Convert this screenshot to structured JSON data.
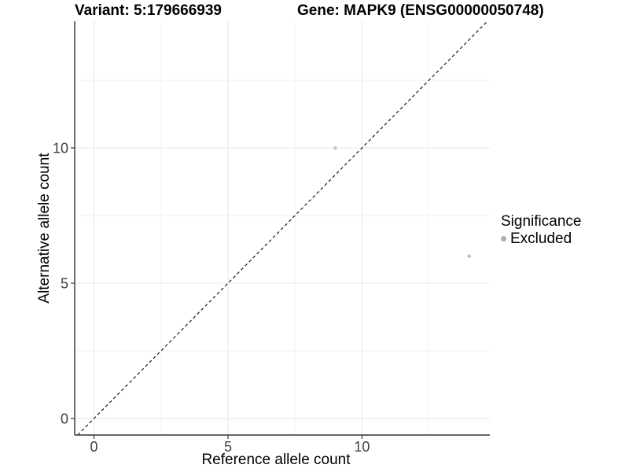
{
  "chart_data": {
    "type": "scatter",
    "title_left": "Variant: 5:179666939",
    "title_right": "Gene: MAPK9 (ENSG00000050748)",
    "xlabel": "Reference allele count",
    "ylabel": "Alternative allele count",
    "xlim": [
      -0.72,
      14.77
    ],
    "ylim": [
      -0.61,
      14.68
    ],
    "x_major_ticks": [
      0,
      5,
      10
    ],
    "y_major_ticks": [
      0,
      5,
      10
    ],
    "x_minor_gridlines": [
      2.5,
      7.5,
      12.5
    ],
    "y_minor_gridlines": [
      2.5,
      7.5,
      12.5
    ],
    "grid": true,
    "points": [
      {
        "x": 9,
        "y": 10
      },
      {
        "x": 14,
        "y": 6
      }
    ],
    "point_color": "#c4c4c4",
    "identity_line": {
      "slope": 1,
      "intercept": 0,
      "style": "dashed",
      "color": "#1a1a1a"
    },
    "legend": {
      "position": "right",
      "title": "Significance",
      "items": [
        {
          "label": "Excluded",
          "color": "#aeaeae"
        }
      ]
    },
    "colors": {
      "axis_line": "#333333",
      "tick_label": "#404040",
      "grid_major": "#e8e8e8",
      "grid_minor": "#f2f2f2"
    }
  }
}
